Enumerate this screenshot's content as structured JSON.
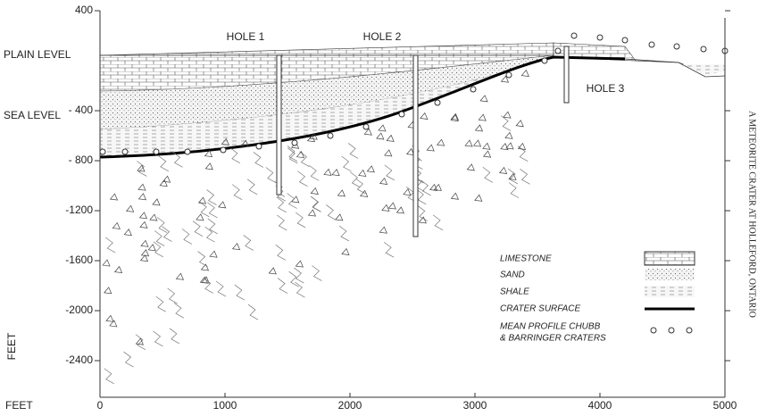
{
  "axes": {
    "y_label": "FEET",
    "x_label": "FEET",
    "yticks": [
      400,
      {
        "value": -400,
        "label": "- 400"
      },
      {
        "value": -800,
        "label": "- 800"
      },
      -1200,
      -1600,
      -2000,
      -2400
    ],
    "xticks": [
      0,
      1000,
      2000,
      3000,
      4000,
      5000
    ],
    "levels": [
      "PLAIN LEVEL",
      "SEA LEVEL"
    ]
  },
  "holes": [
    "HOLE 1",
    "HOLE 2",
    "HOLE 3"
  ],
  "legend": [
    "LIMESTONE",
    "SAND",
    "SHALE",
    "CRATER SURFACE",
    [
      "MEAN PROFILE CHUBB",
      "& BARRINGER CRATERS"
    ]
  ],
  "side_caption": "A METEORITE CRATER AT HOLLEFORD, ONTARIO"
}
